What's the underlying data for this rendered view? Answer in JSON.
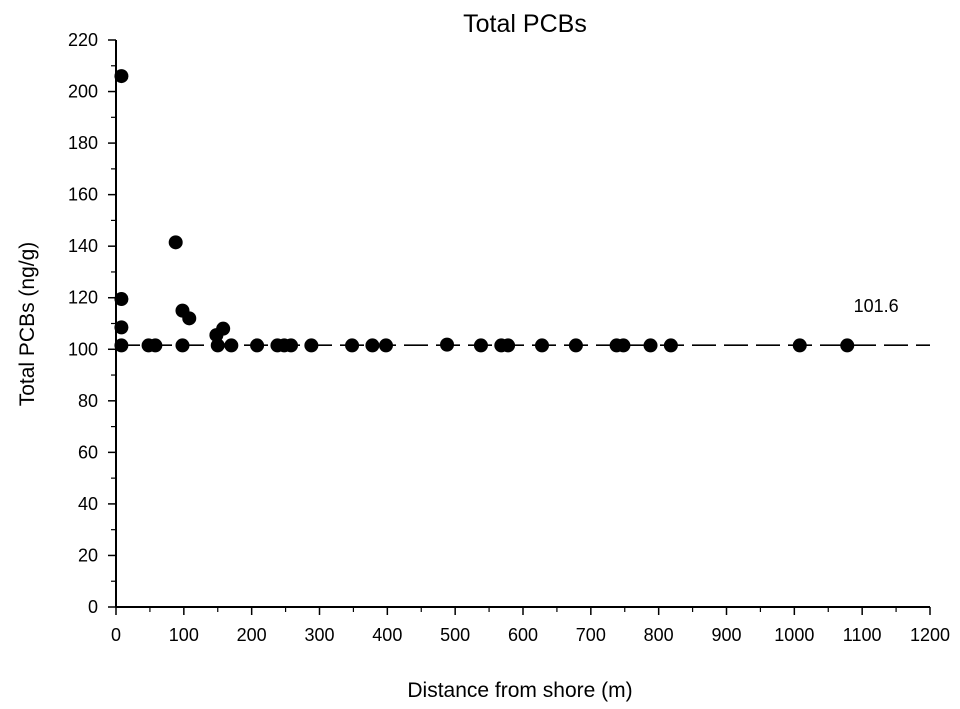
{
  "chart_data": {
    "type": "scatter",
    "title": "Total PCBs",
    "xlabel": "Distance from shore (m)",
    "ylabel": "Total PCBs (ng/g)",
    "xlim": [
      0,
      1200
    ],
    "ylim": [
      0,
      220
    ],
    "xticks": [
      0,
      100,
      200,
      300,
      400,
      500,
      600,
      700,
      800,
      900,
      1000,
      1100,
      1200
    ],
    "yticks": [
      0,
      20,
      40,
      60,
      80,
      100,
      120,
      140,
      160,
      180,
      200,
      220
    ],
    "xtick_labels": [
      "0",
      "100",
      "200",
      "300",
      "400",
      "500",
      "600",
      "700",
      "800",
      "900",
      "1000",
      "1100",
      "1200"
    ],
    "ytick_labels": [
      "0",
      "20",
      "40",
      "60",
      "80",
      "100",
      "120",
      "140",
      "160",
      "180",
      "200",
      "220"
    ],
    "grid": false,
    "reference_line": {
      "y": 101.6,
      "style": "dashed",
      "label": "101.6"
    },
    "points": [
      {
        "x": 8,
        "y": 206
      },
      {
        "x": 8,
        "y": 119.5
      },
      {
        "x": 8,
        "y": 108.5
      },
      {
        "x": 8,
        "y": 101.5
      },
      {
        "x": 48,
        "y": 101.5
      },
      {
        "x": 58,
        "y": 101.5
      },
      {
        "x": 88,
        "y": 141.5
      },
      {
        "x": 98,
        "y": 115
      },
      {
        "x": 98,
        "y": 101.5
      },
      {
        "x": 108,
        "y": 112
      },
      {
        "x": 148,
        "y": 105.5
      },
      {
        "x": 150,
        "y": 101.5
      },
      {
        "x": 158,
        "y": 108
      },
      {
        "x": 170,
        "y": 101.5
      },
      {
        "x": 208,
        "y": 101.5
      },
      {
        "x": 238,
        "y": 101.5
      },
      {
        "x": 248,
        "y": 101.5
      },
      {
        "x": 258,
        "y": 101.5
      },
      {
        "x": 288,
        "y": 101.5
      },
      {
        "x": 348,
        "y": 101.5
      },
      {
        "x": 378,
        "y": 101.5
      },
      {
        "x": 398,
        "y": 101.5
      },
      {
        "x": 488,
        "y": 101.8
      },
      {
        "x": 538,
        "y": 101.5
      },
      {
        "x": 568,
        "y": 101.5
      },
      {
        "x": 578,
        "y": 101.5
      },
      {
        "x": 628,
        "y": 101.5
      },
      {
        "x": 678,
        "y": 101.5
      },
      {
        "x": 738,
        "y": 101.5
      },
      {
        "x": 748,
        "y": 101.5
      },
      {
        "x": 788,
        "y": 101.5
      },
      {
        "x": 818,
        "y": 101.5
      },
      {
        "x": 1008,
        "y": 101.5
      },
      {
        "x": 1078,
        "y": 101.5
      }
    ],
    "marker_color": "#000000",
    "line_color": "#000000"
  }
}
